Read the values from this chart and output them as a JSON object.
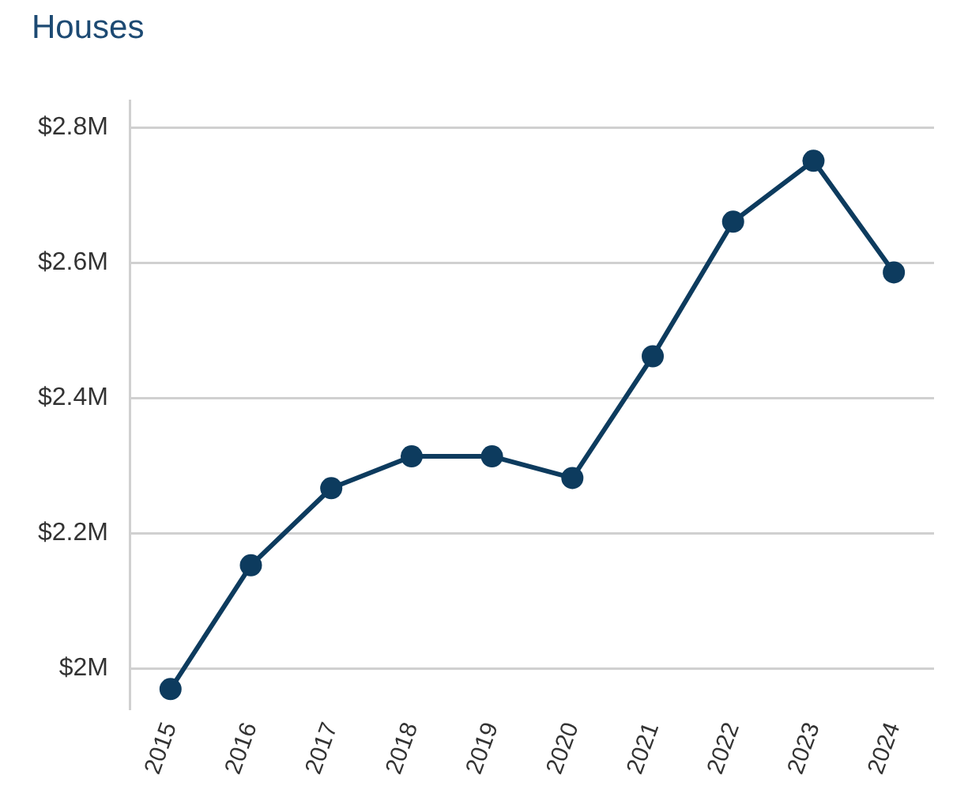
{
  "chart_data": {
    "type": "line",
    "title": "Houses",
    "categories": [
      "2015",
      "2016",
      "2017",
      "2018",
      "2019",
      "2020",
      "2021",
      "2022",
      "2023",
      "2024"
    ],
    "series": [
      {
        "color": "#0d3b5e",
        "values": [
          1.97,
          2.153,
          2.267,
          2.314,
          2.314,
          2.282,
          2.462,
          2.661,
          2.751,
          2.586
        ]
      }
    ],
    "ylim": [
      1.94,
      2.84
    ],
    "yticks": [
      {
        "value": 2,
        "label": "$2M"
      },
      {
        "value": 2.2,
        "label": "$2.2M"
      },
      {
        "value": 2.4,
        "label": "$2.4M"
      },
      {
        "value": 2.6,
        "label": "$2.6M"
      },
      {
        "value": 2.8,
        "label": "$2.8M"
      }
    ],
    "grid": "y",
    "legend": false,
    "marker": "circle",
    "line_style": "solid"
  }
}
